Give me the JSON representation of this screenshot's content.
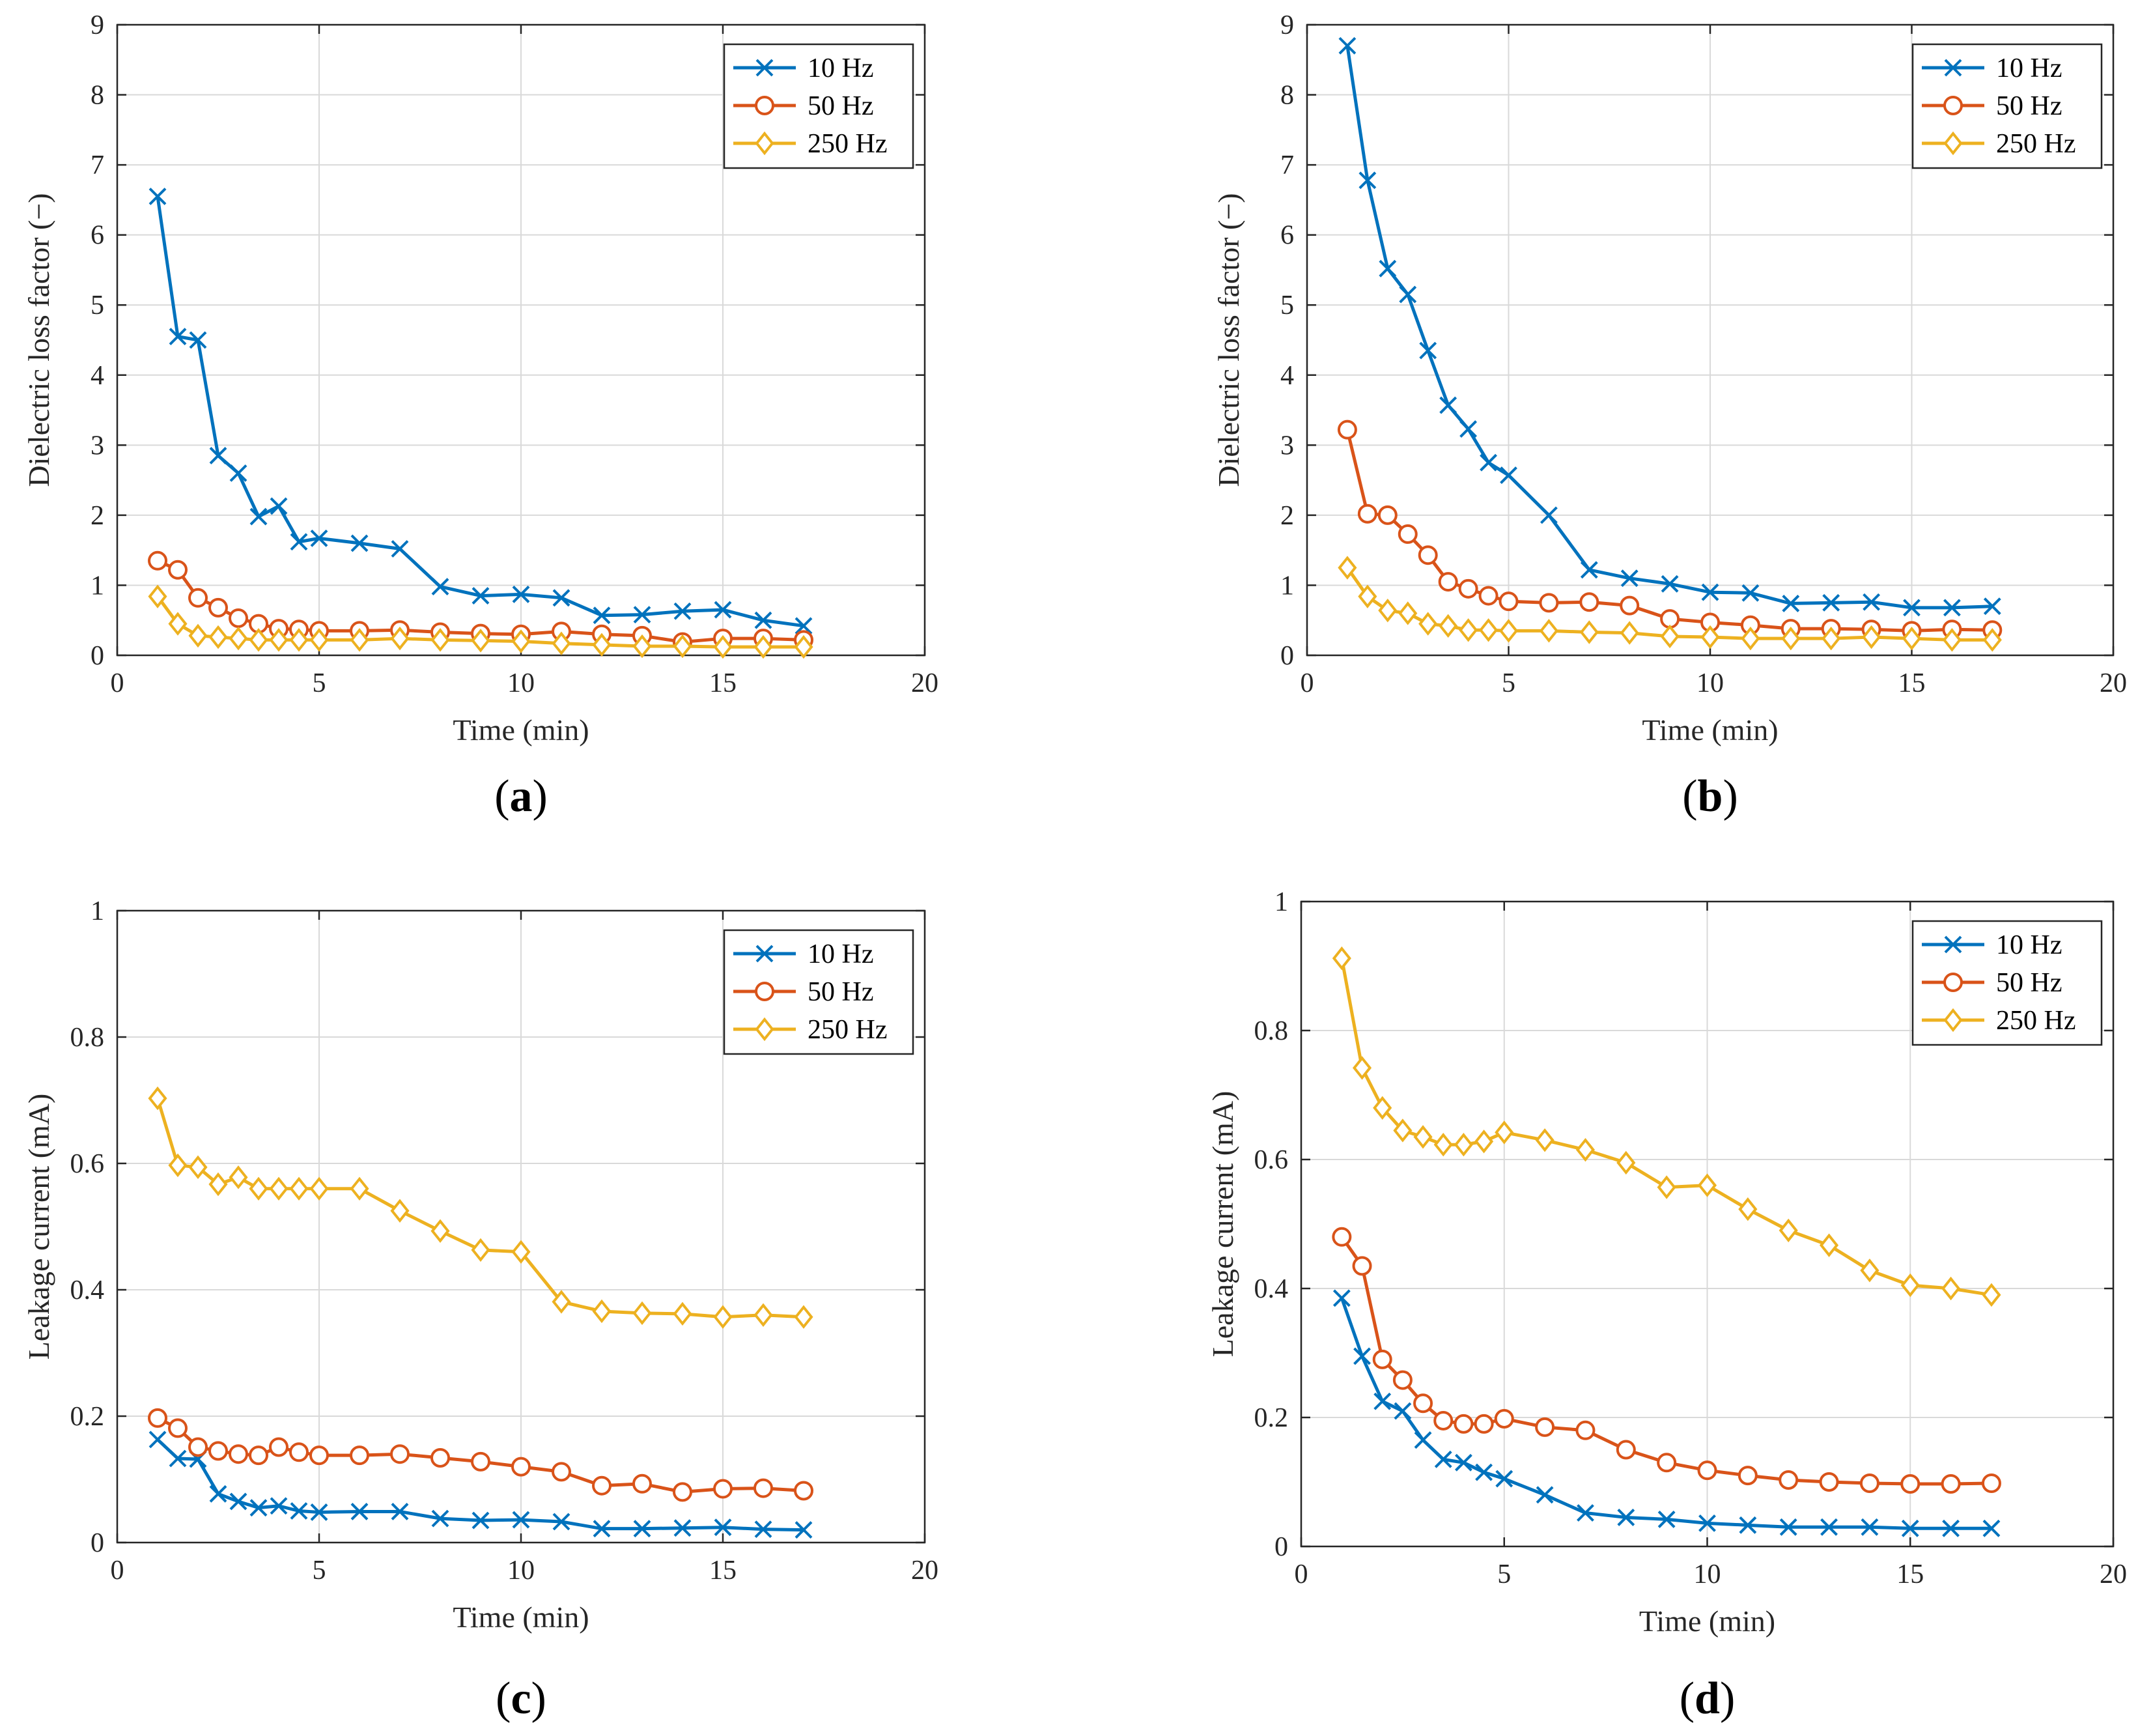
{
  "colors": {
    "10 Hz": "#0072BD",
    "50 Hz": "#D95319",
    "250 Hz": "#EDB120"
  },
  "markers": {
    "10 Hz": "x-marker",
    "50 Hz": "circle-marker",
    "250 Hz": "diamond-marker"
  },
  "chart_data": [
    {
      "id": "a",
      "type": "line",
      "panel_label": "a",
      "xlabel": "Time (min)",
      "ylabel": "Dielectric loss factor (−)",
      "xlim": [
        0,
        20
      ],
      "ylim": [
        0,
        9
      ],
      "xticks": [
        0,
        5,
        10,
        15,
        20
      ],
      "yticks": [
        0,
        1,
        2,
        3,
        4,
        5,
        6,
        7,
        8,
        9
      ],
      "grid": true,
      "legend": "top-right",
      "x": [
        1,
        1.5,
        2,
        2.5,
        3,
        3.5,
        4,
        4.5,
        5,
        6,
        7,
        8,
        9,
        10,
        11,
        12,
        13,
        14,
        15,
        16,
        17
      ],
      "series": [
        {
          "name": "10 Hz",
          "values": [
            6.55,
            4.55,
            4.5,
            2.85,
            2.6,
            1.98,
            2.13,
            1.62,
            1.67,
            1.6,
            1.52,
            0.98,
            0.85,
            0.87,
            0.82,
            0.57,
            0.58,
            0.63,
            0.65,
            0.5,
            0.42
          ]
        },
        {
          "name": "50 Hz",
          "values": [
            1.35,
            1.22,
            0.82,
            0.68,
            0.53,
            0.45,
            0.38,
            0.37,
            0.35,
            0.35,
            0.36,
            0.33,
            0.31,
            0.3,
            0.34,
            0.3,
            0.28,
            0.19,
            0.24,
            0.24,
            0.22
          ]
        },
        {
          "name": "250 Hz",
          "values": [
            0.84,
            0.45,
            0.28,
            0.26,
            0.24,
            0.22,
            0.22,
            0.22,
            0.22,
            0.22,
            0.24,
            0.22,
            0.21,
            0.2,
            0.17,
            0.15,
            0.13,
            0.13,
            0.12,
            0.12,
            0.12
          ]
        }
      ]
    },
    {
      "id": "b",
      "type": "line",
      "panel_label": "b",
      "xlabel": "Time (min)",
      "ylabel": "Dielectric loss factor (−)",
      "xlim": [
        0,
        20
      ],
      "ylim": [
        0,
        9
      ],
      "xticks": [
        0,
        5,
        10,
        15,
        20
      ],
      "yticks": [
        0,
        1,
        2,
        3,
        4,
        5,
        6,
        7,
        8,
        9
      ],
      "grid": true,
      "legend": "top-right",
      "x": [
        1,
        1.5,
        2,
        2.5,
        3,
        3.5,
        4,
        4.5,
        5,
        6,
        7,
        8,
        9,
        10,
        11,
        12,
        13,
        14,
        15,
        16,
        17
      ],
      "series": [
        {
          "name": "10 Hz",
          "values": [
            8.7,
            6.78,
            5.52,
            5.15,
            4.35,
            3.57,
            3.23,
            2.75,
            2.57,
            2.0,
            1.22,
            1.1,
            1.02,
            0.9,
            0.89,
            0.74,
            0.75,
            0.76,
            0.68,
            0.68,
            0.7
          ]
        },
        {
          "name": "50 Hz",
          "values": [
            3.22,
            2.02,
            2.0,
            1.73,
            1.43,
            1.05,
            0.95,
            0.85,
            0.77,
            0.75,
            0.76,
            0.71,
            0.52,
            0.47,
            0.43,
            0.38,
            0.38,
            0.37,
            0.35,
            0.37,
            0.36
          ]
        },
        {
          "name": "250 Hz",
          "values": [
            1.25,
            0.84,
            0.64,
            0.6,
            0.45,
            0.42,
            0.36,
            0.36,
            0.35,
            0.35,
            0.33,
            0.32,
            0.27,
            0.26,
            0.24,
            0.24,
            0.24,
            0.26,
            0.24,
            0.22,
            0.22
          ]
        }
      ]
    },
    {
      "id": "c",
      "type": "line",
      "panel_label": "c",
      "xlabel": "Time (min)",
      "ylabel": "Leakage current (mA)",
      "xlim": [
        0,
        20
      ],
      "ylim": [
        0,
        1
      ],
      "xticks": [
        0,
        5,
        10,
        15,
        20
      ],
      "yticks": [
        0,
        0.2,
        0.4,
        0.6,
        0.8,
        1
      ],
      "grid": true,
      "legend": "top-right",
      "x": [
        1,
        1.5,
        2,
        2.5,
        3,
        3.5,
        4,
        4.5,
        5,
        6,
        7,
        8,
        9,
        10,
        11,
        12,
        13,
        14,
        15,
        16,
        17
      ],
      "series": [
        {
          "name": "10 Hz",
          "values": [
            0.163,
            0.133,
            0.132,
            0.077,
            0.065,
            0.055,
            0.058,
            0.05,
            0.048,
            0.049,
            0.049,
            0.038,
            0.035,
            0.036,
            0.033,
            0.022,
            0.022,
            0.023,
            0.024,
            0.021,
            0.02
          ]
        },
        {
          "name": "50 Hz",
          "values": [
            0.197,
            0.181,
            0.151,
            0.145,
            0.14,
            0.138,
            0.151,
            0.143,
            0.138,
            0.138,
            0.14,
            0.134,
            0.128,
            0.12,
            0.112,
            0.09,
            0.093,
            0.08,
            0.085,
            0.086,
            0.082
          ]
        },
        {
          "name": "250 Hz",
          "values": [
            0.703,
            0.597,
            0.594,
            0.567,
            0.578,
            0.56,
            0.56,
            0.56,
            0.56,
            0.56,
            0.525,
            0.493,
            0.463,
            0.46,
            0.381,
            0.366,
            0.363,
            0.362,
            0.357,
            0.36,
            0.357
          ]
        }
      ]
    },
    {
      "id": "d",
      "type": "line",
      "panel_label": "d",
      "xlabel": "Time (min)",
      "ylabel": "Leakage current (mA)",
      "xlim": [
        0,
        20
      ],
      "ylim": [
        0,
        1
      ],
      "xticks": [
        0,
        5,
        10,
        15,
        20
      ],
      "yticks": [
        0,
        0.2,
        0.4,
        0.6,
        0.8,
        1
      ],
      "grid": true,
      "legend": "top-right",
      "x": [
        1,
        1.5,
        2,
        2.5,
        3,
        3.5,
        4,
        4.5,
        5,
        6,
        7,
        8,
        9,
        10,
        11,
        12,
        13,
        14,
        15,
        16,
        17
      ],
      "series": [
        {
          "name": "10 Hz",
          "values": [
            0.385,
            0.295,
            0.225,
            0.21,
            0.165,
            0.135,
            0.13,
            0.115,
            0.105,
            0.08,
            0.052,
            0.045,
            0.042,
            0.036,
            0.033,
            0.03,
            0.03,
            0.03,
            0.028,
            0.028,
            0.028
          ]
        },
        {
          "name": "50 Hz",
          "values": [
            0.48,
            0.435,
            0.29,
            0.258,
            0.222,
            0.195,
            0.19,
            0.19,
            0.198,
            0.185,
            0.18,
            0.15,
            0.13,
            0.118,
            0.11,
            0.103,
            0.1,
            0.098,
            0.097,
            0.097,
            0.098
          ]
        },
        {
          "name": "250 Hz",
          "values": [
            0.912,
            0.742,
            0.68,
            0.645,
            0.635,
            0.623,
            0.623,
            0.628,
            0.642,
            0.63,
            0.615,
            0.595,
            0.557,
            0.56,
            0.523,
            0.49,
            0.467,
            0.428,
            0.405,
            0.4,
            0.39
          ]
        }
      ]
    }
  ]
}
